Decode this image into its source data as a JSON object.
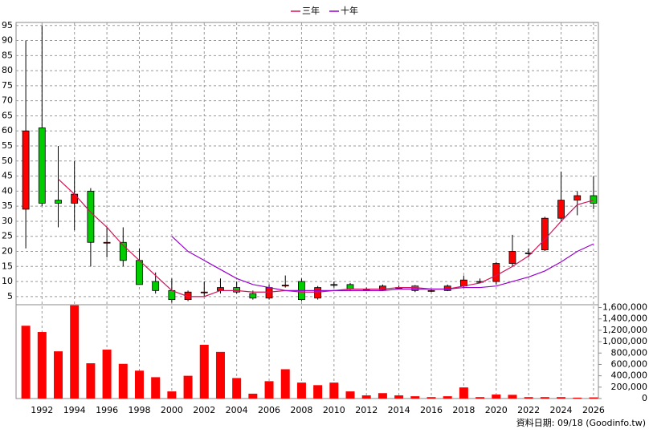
{
  "chart_data": {
    "type": "candlestick",
    "x": [
      1991,
      1992,
      1993,
      1994,
      1995,
      1996,
      1997,
      1998,
      1999,
      2000,
      2001,
      2002,
      2003,
      2004,
      2005,
      2006,
      2007,
      2008,
      2009,
      2010,
      2011,
      2012,
      2013,
      2014,
      2015,
      2016,
      2017,
      2018,
      2019,
      2020,
      2021,
      2022,
      2023,
      2024,
      2025,
      2026
    ],
    "open": [
      34,
      61,
      37,
      36,
      40,
      23,
      23,
      17,
      10,
      7,
      4,
      6.5,
      7,
      8,
      6,
      4.5,
      8.5,
      10,
      4.5,
      8.8,
      9,
      7.5,
      7.3,
      8,
      8.5,
      7,
      7,
      8.5,
      10,
      10,
      16,
      19.5,
      20.5,
      31,
      37,
      38.5
    ],
    "high": [
      90,
      95,
      55,
      50,
      41,
      28,
      28,
      21,
      13,
      11,
      7,
      10,
      11,
      10,
      7,
      9,
      12,
      11,
      8.5,
      10,
      9.5,
      8,
      9,
      8.7,
      8.8,
      7.5,
      9,
      12,
      11,
      16.5,
      25.5,
      21,
      31.5,
      46.5,
      40,
      45
    ],
    "low": [
      21,
      35,
      28,
      27,
      15,
      18,
      15,
      9,
      6,
      3,
      3.5,
      5,
      6,
      6,
      4,
      4,
      8,
      3.5,
      4,
      8,
      7,
      7,
      7,
      7.5,
      6.5,
      6.5,
      6.8,
      8,
      9.8,
      9,
      15,
      18,
      20,
      30,
      32,
      34
    ],
    "close": [
      60,
      36,
      36,
      39,
      23,
      23,
      17,
      9,
      7,
      4,
      6.5,
      6.5,
      8,
      6.5,
      4.5,
      8,
      8.8,
      4,
      8,
      9,
      7.5,
      7.5,
      8.5,
      8,
      7,
      7,
      8.5,
      10.5,
      10,
      16,
      20,
      19.5,
      31,
      37,
      38.5,
      36
    ],
    "up_color": "#ff0000",
    "down_color": "#00cc00",
    "xlim": [
      1990.4,
      2026.3
    ],
    "xticks": [
      1992,
      1994,
      1996,
      1998,
      2000,
      2002,
      2004,
      2006,
      2008,
      2010,
      2012,
      2014,
      2016,
      2018,
      2020,
      2022,
      2024,
      2026
    ],
    "ylim": [
      2.3,
      96
    ],
    "yticks": [
      5,
      10,
      15,
      20,
      25,
      30,
      35,
      40,
      45,
      50,
      55,
      60,
      65,
      70,
      75,
      80,
      85,
      90,
      95
    ],
    "grid": true,
    "series": [
      {
        "name": "三年",
        "color": "#d4145a",
        "values": [
          null,
          null,
          44,
          39,
          33,
          28,
          22,
          17,
          12,
          7,
          5,
          5,
          7,
          7,
          6.5,
          6.5,
          7,
          6.5,
          6.5,
          7,
          7.5,
          7.5,
          7.5,
          8,
          8,
          7.5,
          7.5,
          8.5,
          9.5,
          12,
          15,
          18.5,
          24,
          30,
          35.5,
          37
        ]
      },
      {
        "name": "十年",
        "color": "#9900cc",
        "values": [
          null,
          null,
          null,
          null,
          null,
          null,
          null,
          null,
          null,
          25,
          20,
          17,
          14,
          11,
          9,
          8,
          7,
          7,
          7,
          7,
          7,
          7,
          7,
          7.5,
          7.5,
          7.5,
          7.5,
          8,
          8,
          8.5,
          10,
          11.5,
          13.5,
          16.5,
          20,
          22.5
        ]
      }
    ],
    "volume": {
      "color": "#ff0000",
      "values": [
        1280000,
        1170000,
        830000,
        1640000,
        620000,
        860000,
        610000,
        490000,
        375000,
        125000,
        400000,
        945000,
        820000,
        360000,
        85000,
        305000,
        515000,
        280000,
        235000,
        280000,
        125000,
        55000,
        95000,
        55000,
        40000,
        25000,
        40000,
        195000,
        25000,
        70000,
        65000,
        25000,
        25000,
        25000,
        15000,
        20000
      ],
      "ylim": [
        0,
        1650000
      ],
      "yticks": [
        0,
        {
          "value": 200000,
          "label": "200,000"
        },
        {
          "value": 400000,
          "label": "400,000"
        },
        {
          "value": 600000,
          "label": "600,000"
        },
        {
          "value": 800000,
          "label": "800,000"
        },
        {
          "value": 1000000,
          "label": "1,000,000"
        },
        {
          "value": 1200000,
          "label": "1,200,000"
        },
        {
          "value": 1400000,
          "label": "1,400,000"
        },
        {
          "value": 1600000,
          "label": "1,600,000"
        }
      ]
    },
    "footer": "資料日期: 09/18 (Goodinfo.tw)"
  }
}
